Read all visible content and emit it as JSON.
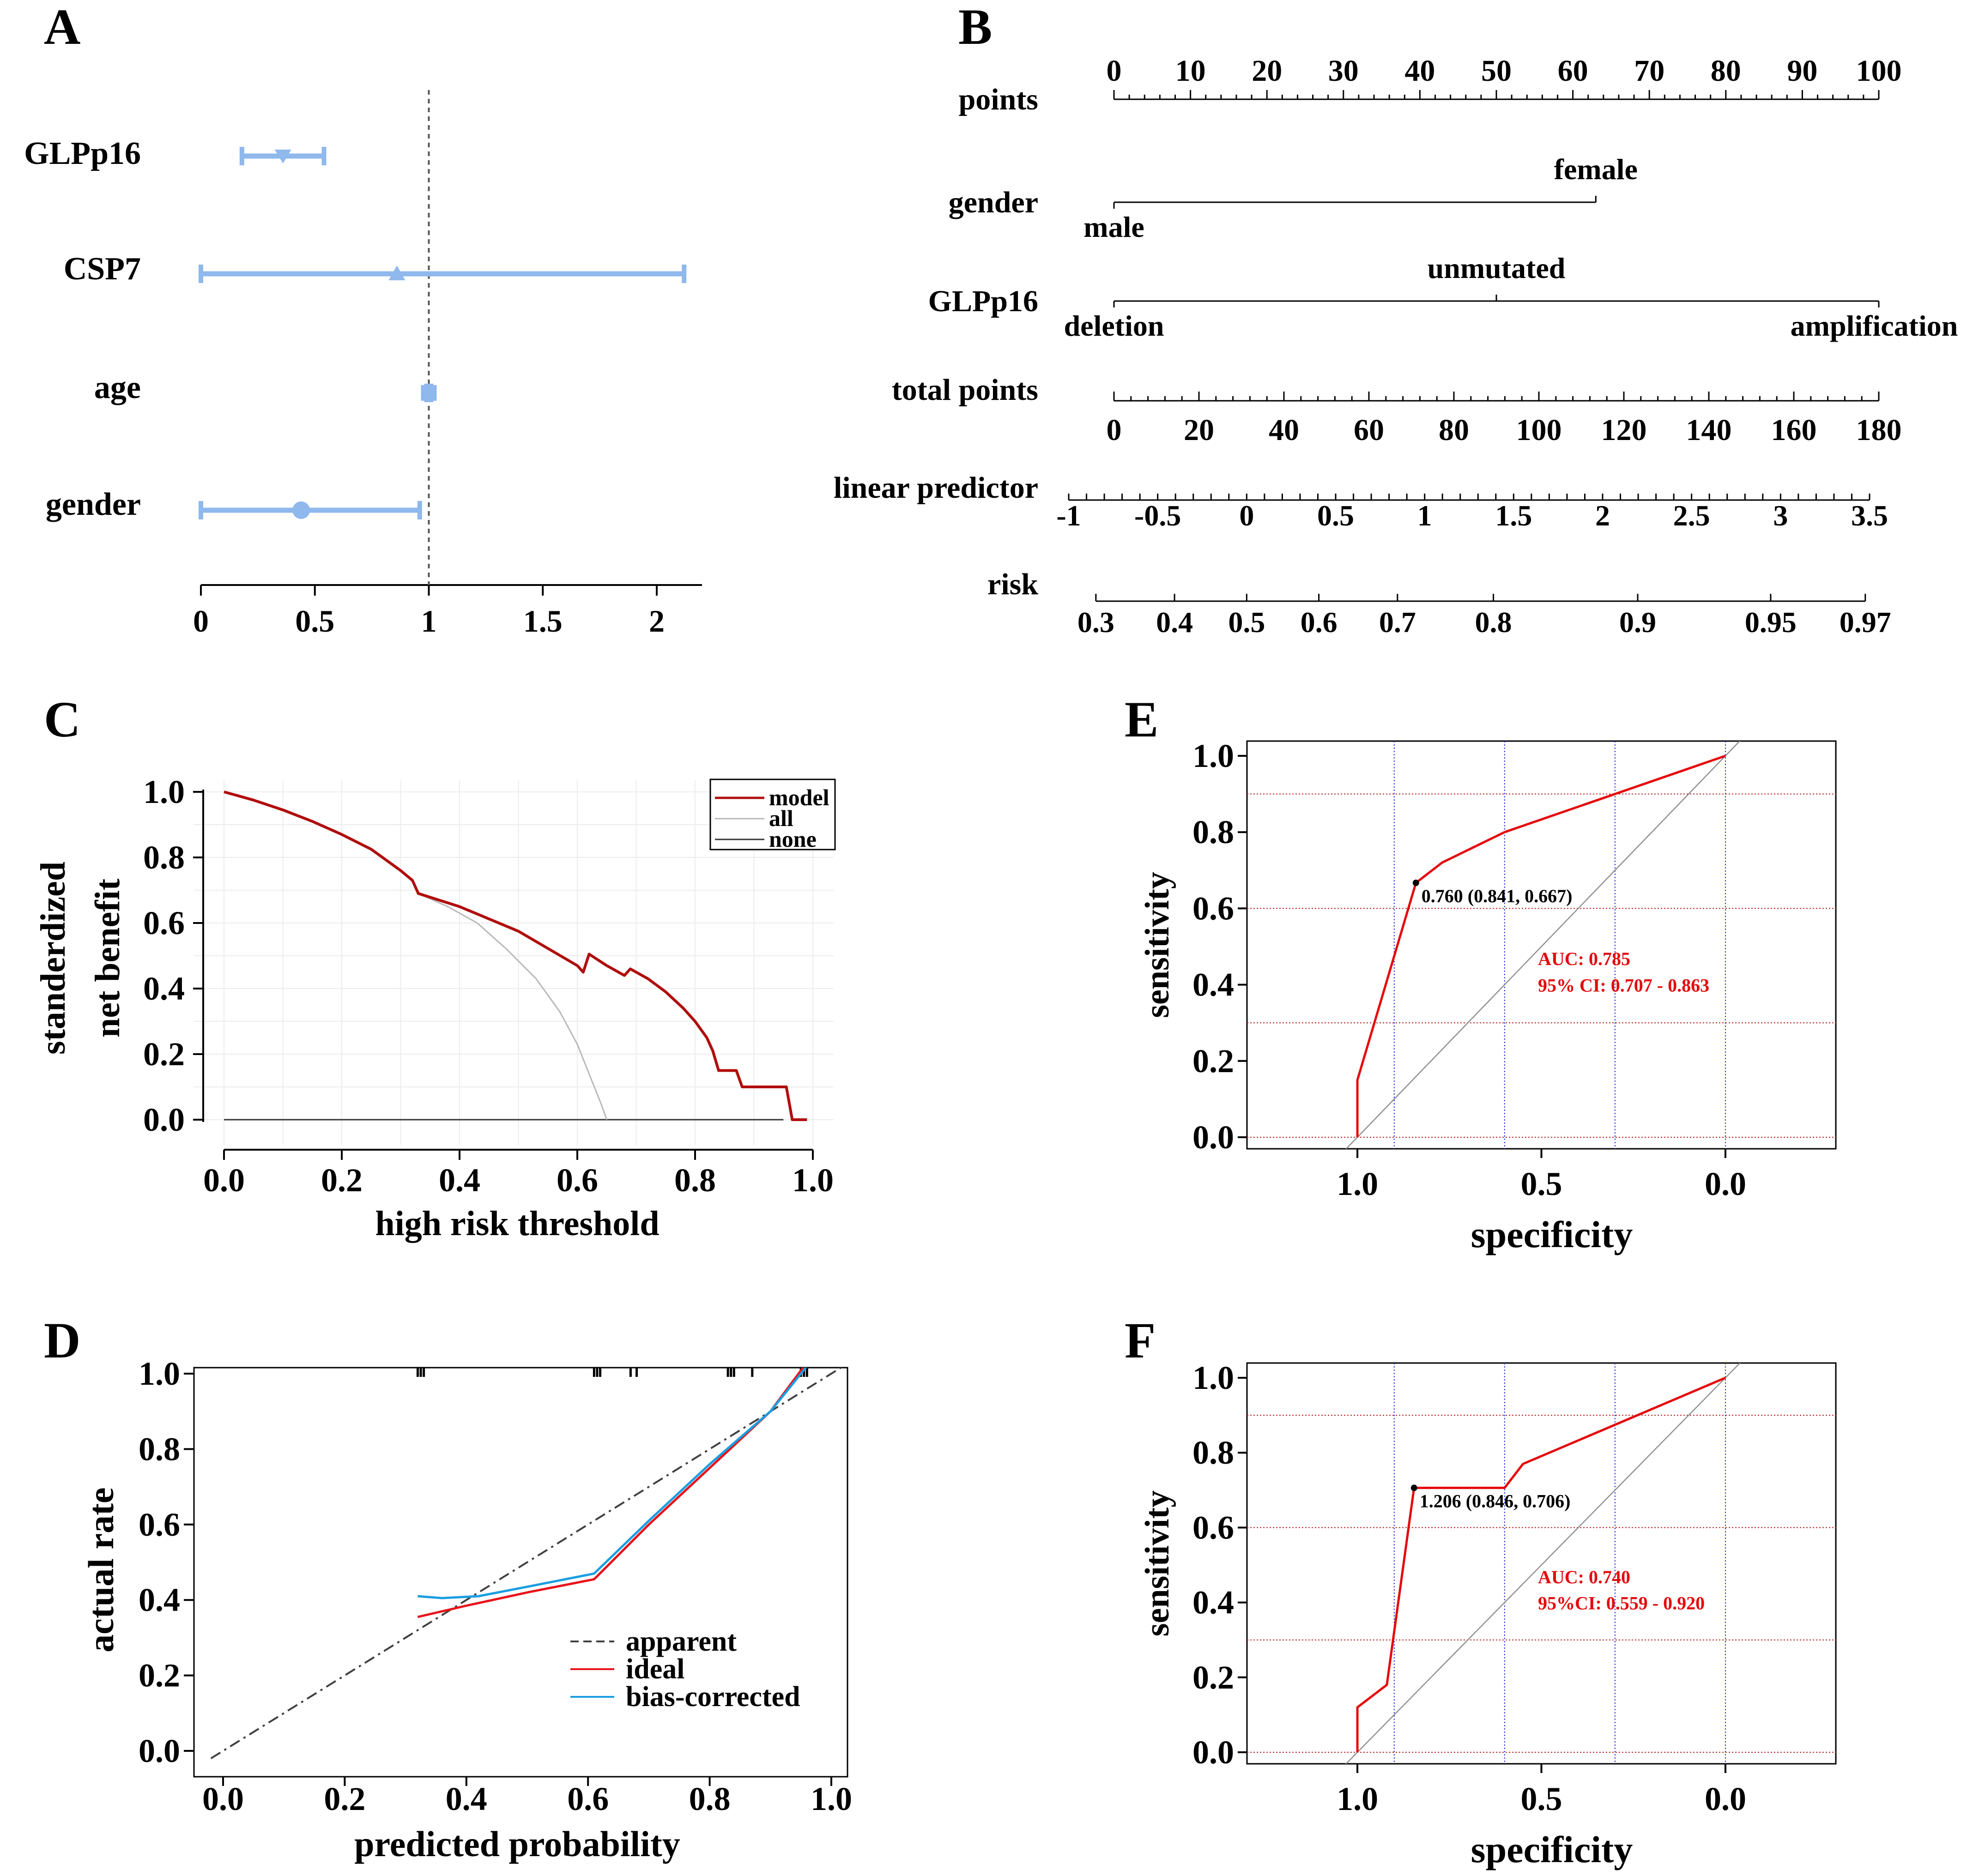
{
  "colors": {
    "forest": "#8fb8ec",
    "model": "#b00d0d",
    "allLine": "#b8b8b8",
    "noneLine": "#333333",
    "ideal": "#e8121b",
    "biasCorrected": "#1a9ee0",
    "apparent": "#404040",
    "roc": "#e5080b",
    "hgrid": "#b22222",
    "vgrid": "#2f2fd8",
    "diag": "#909090"
  },
  "panels": {
    "A": "A",
    "B": "B",
    "C": "C",
    "D": "D",
    "E": "E",
    "F": "F"
  },
  "chart_data": [
    {
      "id": "A",
      "type": "forest",
      "xticks": [
        "0",
        "0.5",
        "1",
        "1.5",
        "2"
      ],
      "xlim": [
        0,
        2.2
      ],
      "refline": 1,
      "rows": [
        {
          "label": "GLPp16",
          "estimate": 0.36,
          "lower": 0.18,
          "upper": 0.54,
          "marker": "triangle-down"
        },
        {
          "label": "CSP7",
          "estimate": 0.86,
          "lower": 0.0,
          "upper": 2.12,
          "marker": "triangle-up"
        },
        {
          "label": "age",
          "estimate": 1.0,
          "lower": 0.99,
          "upper": 1.01,
          "marker": "square"
        },
        {
          "label": "gender",
          "estimate": 0.44,
          "lower": 0.0,
          "upper": 0.96,
          "marker": "circle"
        }
      ]
    },
    {
      "id": "B",
      "type": "nomogram",
      "rows": [
        {
          "label": "points",
          "scale": "points",
          "ticks": [
            "0",
            "10",
            "20",
            "30",
            "40",
            "50",
            "60",
            "70",
            "80",
            "90",
            "100"
          ]
        },
        {
          "label": "gender",
          "scale": "points",
          "start": 0,
          "end": 63,
          "levels": [
            {
              "text": "male",
              "at": 0,
              "pos": "below"
            },
            {
              "text": "female",
              "at": 63,
              "pos": "above"
            }
          ]
        },
        {
          "label": "GLPp16",
          "scale": "points",
          "start": 0,
          "end": 100,
          "levels": [
            {
              "text": "deletion",
              "at": 0,
              "pos": "below"
            },
            {
              "text": "unmutated",
              "at": 50,
              "pos": "above"
            },
            {
              "text": "amplification",
              "at": 100,
              "pos": "below"
            }
          ]
        },
        {
          "label": "total points",
          "scale": "total",
          "max": 180,
          "ticks": [
            "0",
            "20",
            "40",
            "60",
            "80",
            "100",
            "120",
            "140",
            "160",
            "180"
          ]
        },
        {
          "label": "linear predictor",
          "scale": "lp",
          "min": -1,
          "max": 3.5,
          "ticks": [
            [
              "-1",
              -1
            ],
            [
              "-0.5",
              -0.5
            ],
            [
              "0",
              0
            ],
            [
              "0.5",
              0.5
            ],
            [
              "1",
              1
            ],
            [
              "1.5",
              1.5
            ],
            [
              "2",
              2
            ],
            [
              "2.5",
              2.5
            ],
            [
              "3",
              3
            ],
            [
              "3.5",
              3.5
            ]
          ]
        },
        {
          "label": "risk",
          "scale": "logit",
          "ticks": [
            [
              "0.3",
              0.3
            ],
            [
              "0.4",
              0.4
            ],
            [
              "0.5",
              0.5
            ],
            [
              "0.6",
              0.6
            ],
            [
              "0.7",
              0.7
            ],
            [
              "0.8",
              0.8
            ],
            [
              "0.9",
              0.9
            ],
            [
              "0.95",
              0.95
            ],
            [
              "0.97",
              0.97
            ]
          ]
        }
      ]
    },
    {
      "id": "C",
      "type": "line",
      "xlabel": "high risk threshold",
      "ylabel": [
        "standerdized",
        "net benefit"
      ],
      "xlim": [
        0,
        1
      ],
      "ylim": [
        0,
        1
      ],
      "xticks": [
        "0.0",
        "0.2",
        "0.4",
        "0.6",
        "0.8",
        "1.0"
      ],
      "yticks": [
        "0.0",
        "0.2",
        "0.4",
        "0.6",
        "0.8",
        "1.0"
      ],
      "legend": [
        "model",
        "all",
        "none"
      ],
      "series": [
        {
          "name": "model",
          "color": "model",
          "points": [
            [
              0,
              1.0
            ],
            [
              0.05,
              0.975
            ],
            [
              0.1,
              0.945
            ],
            [
              0.15,
              0.91
            ],
            [
              0.2,
              0.87
            ],
            [
              0.25,
              0.825
            ],
            [
              0.3,
              0.76
            ],
            [
              0.32,
              0.73
            ],
            [
              0.33,
              0.69
            ],
            [
              0.4,
              0.65
            ],
            [
              0.5,
              0.575
            ],
            [
              0.6,
              0.47
            ],
            [
              0.61,
              0.45
            ],
            [
              0.62,
              0.505
            ],
            [
              0.65,
              0.47
            ],
            [
              0.68,
              0.44
            ],
            [
              0.69,
              0.46
            ],
            [
              0.72,
              0.43
            ],
            [
              0.75,
              0.39
            ],
            [
              0.78,
              0.34
            ],
            [
              0.8,
              0.3
            ],
            [
              0.82,
              0.25
            ],
            [
              0.83,
              0.21
            ],
            [
              0.84,
              0.15
            ],
            [
              0.87,
              0.15
            ],
            [
              0.88,
              0.1
            ],
            [
              0.955,
              0.1
            ],
            [
              0.965,
              0.0
            ],
            [
              0.99,
              0.0
            ]
          ]
        },
        {
          "name": "all",
          "color": "allLine",
          "points": [
            [
              0.33,
              0.69
            ],
            [
              0.38,
              0.65
            ],
            [
              0.43,
              0.6
            ],
            [
              0.48,
              0.52
            ],
            [
              0.53,
              0.43
            ],
            [
              0.57,
              0.33
            ],
            [
              0.6,
              0.23
            ],
            [
              0.62,
              0.14
            ],
            [
              0.64,
              0.05
            ],
            [
              0.65,
              0.0
            ]
          ]
        },
        {
          "name": "none",
          "color": "noneLine",
          "points": [
            [
              0,
              0
            ],
            [
              0.95,
              0
            ]
          ]
        }
      ]
    },
    {
      "id": "D",
      "type": "line",
      "xlabel": "predicted probability",
      "ylabel": [
        "actual rate"
      ],
      "xlim": [
        -0.02,
        1.02
      ],
      "ylim": [
        -0.02,
        1.03
      ],
      "xticks": [
        "0.0",
        "0.2",
        "0.4",
        "0.6",
        "0.8",
        "1.0"
      ],
      "yticks": [
        "0.0",
        "0.2",
        "0.4",
        "0.6",
        "0.8",
        "1.0"
      ],
      "legend": [
        "apparent",
        "ideal",
        "bias-corrected"
      ],
      "rug": [
        0.32,
        0.325,
        0.33,
        0.61,
        0.615,
        0.62,
        0.67,
        0.68,
        0.83,
        0.835,
        0.84,
        0.87,
        0.95,
        0.955,
        0.96
      ],
      "series": [
        {
          "name": "apparent",
          "color": "apparent",
          "dash": true,
          "points": [
            [
              -0.02,
              -0.02
            ],
            [
              1.02,
              1.02
            ]
          ]
        },
        {
          "name": "ideal",
          "color": "ideal",
          "points": [
            [
              0.32,
              0.355
            ],
            [
              0.4,
              0.385
            ],
            [
              0.5,
              0.42
            ],
            [
              0.61,
              0.455
            ],
            [
              0.7,
              0.6
            ],
            [
              0.8,
              0.75
            ],
            [
              0.9,
              0.9
            ],
            [
              0.96,
              1.03
            ]
          ]
        },
        {
          "name": "bias-corrected",
          "color": "biasCorrected",
          "points": [
            [
              0.32,
              0.41
            ],
            [
              0.36,
              0.405
            ],
            [
              0.42,
              0.41
            ],
            [
              0.5,
              0.435
            ],
            [
              0.61,
              0.47
            ],
            [
              0.7,
              0.61
            ],
            [
              0.8,
              0.76
            ],
            [
              0.9,
              0.9
            ],
            [
              0.96,
              1.02
            ]
          ]
        }
      ]
    },
    {
      "id": "E",
      "type": "roc",
      "xlabel": "specificity",
      "ylabel": "sensitivity",
      "xlim": [
        1.3,
        -0.3
      ],
      "ylim": [
        -0.03,
        1.03
      ],
      "xticks": [
        [
          "1.0",
          1.0
        ],
        [
          "0.5",
          0.5
        ],
        [
          "0.0",
          0.0
        ]
      ],
      "yticks": [
        "0.0",
        "0.2",
        "0.4",
        "0.6",
        "0.8",
        "1.0"
      ],
      "hgrid": [
        0,
        0.3,
        0.6,
        0.9
      ],
      "vgrid": [
        0.9,
        0.6,
        0.3,
        0.0
      ],
      "best_point": {
        "spec": 0.841,
        "sens": 0.667,
        "label": "0.760 (0.841, 0.667)"
      },
      "auc_text": "AUC: 0.785",
      "ci_text": "95% CI: 0.707 - 0.863",
      "curve": [
        [
          1.0,
          0
        ],
        [
          1.0,
          0.15
        ],
        [
          0.841,
          0.667
        ],
        [
          0.77,
          0.72
        ],
        [
          0.6,
          0.8
        ],
        [
          0.3,
          0.9
        ],
        [
          0,
          1.0
        ]
      ]
    },
    {
      "id": "F",
      "type": "roc",
      "xlabel": "specificity",
      "ylabel": "sensitivity",
      "xlim": [
        1.3,
        -0.3
      ],
      "ylim": [
        -0.03,
        1.03
      ],
      "xticks": [
        [
          "1.0",
          1.0
        ],
        [
          "0.5",
          0.5
        ],
        [
          "0.0",
          0.0
        ]
      ],
      "yticks": [
        "0.0",
        "0.2",
        "0.4",
        "0.6",
        "0.8",
        "1.0"
      ],
      "hgrid": [
        0,
        0.3,
        0.6,
        0.9
      ],
      "vgrid": [
        0.9,
        0.6,
        0.3,
        0.0
      ],
      "best_point": {
        "spec": 0.846,
        "sens": 0.706,
        "label": "1.206 (0.846, 0.706)"
      },
      "auc_text": "AUC: 0.740",
      "ci_text": "95%CI: 0.559 - 0.920",
      "curve": [
        [
          1.0,
          0
        ],
        [
          1.0,
          0.12
        ],
        [
          0.92,
          0.18
        ],
        [
          0.846,
          0.706
        ],
        [
          0.6,
          0.706
        ],
        [
          0.55,
          0.77
        ],
        [
          0,
          1.0
        ]
      ]
    }
  ]
}
